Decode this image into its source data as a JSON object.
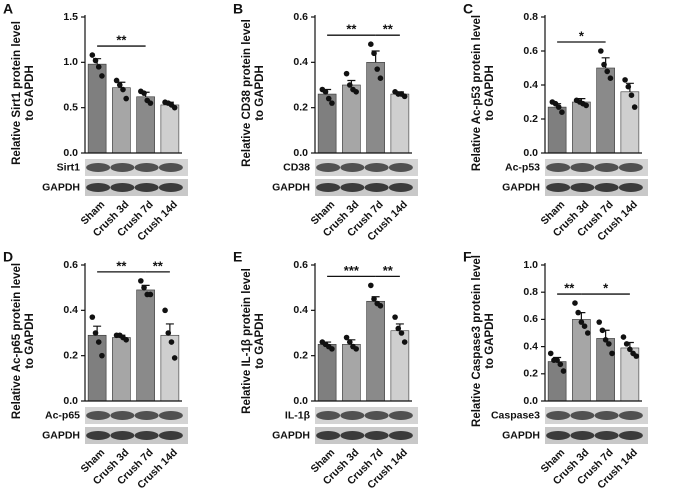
{
  "chart_data": [
    {
      "type": "bar",
      "panel": "A",
      "ylabel": [
        "Relative Sirt1 protein level",
        "to GAPDH"
      ],
      "categories": [
        "Sham",
        "Crush 3d",
        "Crush 7d",
        "Crush 14d"
      ],
      "colors": [
        "#7f7f7f",
        "#a6a6a6",
        "#8a8a8a",
        "#cfcfcf"
      ],
      "values": [
        0.98,
        0.72,
        0.62,
        0.53
      ],
      "errors": [
        0.06,
        0.06,
        0.05,
        0.03
      ],
      "points": [
        [
          1.08,
          1.02,
          0.95,
          0.85
        ],
        [
          0.8,
          0.75,
          0.7,
          0.6
        ],
        [
          0.68,
          0.66,
          0.58,
          0.55
        ],
        [
          0.56,
          0.55,
          0.53,
          0.5
        ]
      ],
      "ylim": [
        0,
        1.5
      ],
      "yticks": [
        {
          "value": 0,
          "label": "0.0"
        },
        0.5,
        {
          "value": 1,
          "label": "1.0"
        },
        1.5
      ],
      "significance": [
        {
          "between": [
            "Sham",
            "Crush 7d"
          ],
          "label": "**"
        }
      ],
      "blots": [
        "Sirt1",
        "GAPDH"
      ]
    },
    {
      "type": "bar",
      "panel": "B",
      "ylabel": [
        "Relative CD38 protein level",
        "to GAPDH"
      ],
      "categories": [
        "Sham",
        "Crush 3d",
        "Crush 7d",
        "Crush 14d"
      ],
      "colors": [
        "#7f7f7f",
        "#a6a6a6",
        "#8a8a8a",
        "#cfcfcf"
      ],
      "values": [
        0.26,
        0.3,
        0.4,
        0.26
      ],
      "errors": [
        0.02,
        0.02,
        0.05,
        0.01
      ],
      "points": [
        [
          0.28,
          0.27,
          0.24,
          0.22
        ],
        [
          0.35,
          0.3,
          0.28,
          0.27
        ],
        [
          0.48,
          0.44,
          0.37,
          0.33
        ],
        [
          0.27,
          0.26,
          0.26,
          0.25
        ]
      ],
      "ylim": [
        0,
        0.6
      ],
      "yticks": [
        {
          "value": 0,
          "label": "0.0"
        },
        0.2,
        0.4,
        0.6
      ],
      "significance": [
        {
          "between": [
            "Sham",
            "Crush 7d"
          ],
          "label": "**"
        },
        {
          "between": [
            "Crush 7d",
            "Crush 14d"
          ],
          "label": "**"
        }
      ],
      "blots": [
        "CD38",
        "GAPDH"
      ]
    },
    {
      "type": "bar",
      "panel": "C",
      "ylabel": [
        "Relative Ac-p53 protein level",
        "to GAPDH"
      ],
      "categories": [
        "Sham",
        "Crush 3d",
        "Crush 7d",
        "Crush 14d"
      ],
      "colors": [
        "#7f7f7f",
        "#a6a6a6",
        "#8a8a8a",
        "#cfcfcf"
      ],
      "values": [
        0.27,
        0.3,
        0.5,
        0.36
      ],
      "errors": [
        0.02,
        0.02,
        0.06,
        0.05
      ],
      "points": [
        [
          0.3,
          0.29,
          0.27,
          0.24
        ],
        [
          0.31,
          0.3,
          0.29,
          0.28
        ],
        [
          0.6,
          0.52,
          0.48,
          0.44
        ],
        [
          0.43,
          0.39,
          0.34,
          0.27
        ]
      ],
      "ylim": [
        0,
        0.8
      ],
      "yticks": [
        {
          "value": 0,
          "label": "0.0"
        },
        0.2,
        0.4,
        0.6,
        0.8
      ],
      "significance": [
        {
          "between": [
            "Sham",
            "Crush 7d"
          ],
          "label": "*"
        }
      ],
      "blots": [
        "Ac-p53",
        "GAPDH"
      ]
    },
    {
      "type": "bar",
      "panel": "D",
      "ylabel": [
        "Relative Ac-p65 protein level",
        "to GAPDH"
      ],
      "categories": [
        "Sham",
        "Crush 3d",
        "Crush 7d",
        "Crush 14d"
      ],
      "colors": [
        "#7f7f7f",
        "#a6a6a6",
        "#8a8a8a",
        "#cfcfcf"
      ],
      "values": [
        0.29,
        0.28,
        0.49,
        0.29
      ],
      "errors": [
        0.04,
        0.01,
        0.02,
        0.05
      ],
      "points": [
        [
          0.37,
          0.3,
          0.26,
          0.2
        ],
        [
          0.29,
          0.29,
          0.28,
          0.27
        ],
        [
          0.53,
          0.5,
          0.47,
          0.47
        ],
        [
          0.4,
          0.3,
          0.26,
          0.19
        ]
      ],
      "ylim": [
        0,
        0.6
      ],
      "yticks": [
        {
          "value": 0,
          "label": "0.0"
        },
        0.2,
        0.4,
        0.6
      ],
      "significance": [
        {
          "between": [
            "Sham",
            "Crush 7d"
          ],
          "label": "**"
        },
        {
          "between": [
            "Crush 7d",
            "Crush 14d"
          ],
          "label": "**"
        }
      ],
      "blots": [
        "Ac-p65",
        "GAPDH"
      ]
    },
    {
      "type": "bar",
      "panel": "E",
      "ylabel": [
        "Relative IL-1β protein level",
        "to GAPDH"
      ],
      "categories": [
        "Sham",
        "Crush 3d",
        "Crush 7d",
        "Crush 14d"
      ],
      "colors": [
        "#7f7f7f",
        "#a6a6a6",
        "#8a8a8a",
        "#cfcfcf"
      ],
      "values": [
        0.25,
        0.25,
        0.44,
        0.31
      ],
      "errors": [
        0.01,
        0.02,
        0.02,
        0.03
      ],
      "points": [
        [
          0.26,
          0.25,
          0.24,
          0.23
        ],
        [
          0.28,
          0.26,
          0.24,
          0.23
        ],
        [
          0.51,
          0.45,
          0.43,
          0.42
        ],
        [
          0.37,
          0.32,
          0.3,
          0.26
        ]
      ],
      "ylim": [
        0,
        0.6
      ],
      "yticks": [
        {
          "value": 0,
          "label": "0.0"
        },
        0.2,
        0.4,
        0.6
      ],
      "significance": [
        {
          "between": [
            "Sham",
            "Crush 7d"
          ],
          "label": "***"
        },
        {
          "between": [
            "Crush 7d",
            "Crush 14d"
          ],
          "label": "**"
        }
      ],
      "blots": [
        "IL-1β",
        "GAPDH"
      ]
    },
    {
      "type": "bar",
      "panel": "F",
      "ylabel": [
        "Relative Caspase3 protein level",
        "to GAPDH"
      ],
      "categories": [
        "Sham",
        "Crush 3d",
        "Crush 7d",
        "Crush 14d"
      ],
      "colors": [
        "#7f7f7f",
        "#a6a6a6",
        "#8a8a8a",
        "#cfcfcf"
      ],
      "values": [
        0.29,
        0.6,
        0.46,
        0.39
      ],
      "errors": [
        0.03,
        0.05,
        0.06,
        0.04
      ],
      "points": [
        [
          0.35,
          0.3,
          0.3,
          0.27,
          0.22
        ],
        [
          0.72,
          0.65,
          0.58,
          0.55,
          0.5
        ],
        [
          0.58,
          0.52,
          0.45,
          0.42,
          0.35
        ],
        [
          0.47,
          0.42,
          0.38,
          0.35,
          0.33
        ]
      ],
      "ylim": [
        0,
        1
      ],
      "yticks": [
        {
          "value": 0,
          "label": "0.0"
        },
        0.2,
        0.4,
        0.6,
        0.8,
        {
          "value": 1,
          "label": "1.0"
        }
      ],
      "significance": [
        {
          "between": [
            "Sham",
            "Crush 3d"
          ],
          "label": "**"
        },
        {
          "between": [
            "Crush 3d",
            "Crush 14d"
          ],
          "label": "*"
        }
      ],
      "blots": [
        "Caspase3",
        "GAPDH"
      ]
    }
  ]
}
